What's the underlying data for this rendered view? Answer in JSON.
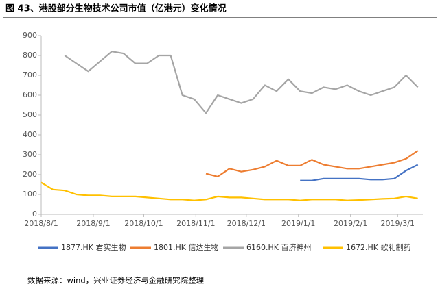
{
  "chart_data": {
    "type": "line",
    "title": "图 43、港股部分生物技术公司市值（亿港元）变化情况",
    "source": "数据来源：wind，兴业证券经济与金融研究院整理",
    "x": [
      "2018/8/1",
      "2018/8/8",
      "2018/8/15",
      "2018/8/22",
      "2018/8/29",
      "2018/9/5",
      "2018/9/12",
      "2018/9/19",
      "2018/9/26",
      "2018/10/3",
      "2018/10/10",
      "2018/10/17",
      "2018/10/24",
      "2018/10/31",
      "2018/11/7",
      "2018/11/14",
      "2018/11/21",
      "2018/11/28",
      "2018/12/5",
      "2018/12/12",
      "2018/12/19",
      "2018/12/26",
      "2019/1/2",
      "2019/1/9",
      "2019/1/16",
      "2019/1/23",
      "2019/1/30",
      "2019/2/6",
      "2019/2/13",
      "2019/2/20",
      "2019/2/27",
      "2019/3/6",
      "2019/3/13"
    ],
    "series": [
      {
        "name": "1877.HK 君实生物",
        "color": "#4472c4",
        "values": [
          null,
          null,
          null,
          null,
          null,
          null,
          null,
          null,
          null,
          null,
          null,
          null,
          null,
          null,
          null,
          null,
          null,
          null,
          null,
          null,
          null,
          null,
          170,
          170,
          180,
          180,
          180,
          180,
          175,
          175,
          180,
          220,
          250
        ]
      },
      {
        "name": "1801.HK 信达生物",
        "color": "#ed7d31",
        "values": [
          null,
          null,
          null,
          null,
          null,
          null,
          null,
          null,
          null,
          null,
          null,
          null,
          null,
          null,
          205,
          190,
          230,
          215,
          225,
          240,
          270,
          245,
          245,
          275,
          250,
          240,
          230,
          230,
          240,
          250,
          260,
          280,
          320
        ]
      },
      {
        "name": "6160.HK 百济神州",
        "color": "#a5a5a5",
        "values": [
          null,
          null,
          800,
          760,
          720,
          770,
          820,
          810,
          760,
          760,
          800,
          800,
          600,
          580,
          510,
          600,
          580,
          560,
          580,
          650,
          620,
          680,
          620,
          610,
          640,
          630,
          650,
          620,
          600,
          620,
          640,
          700,
          640
        ]
      },
      {
        "name": "1672.HK 歌礼制药",
        "color": "#ffc000",
        "values": [
          160,
          125,
          120,
          100,
          95,
          95,
          90,
          90,
          90,
          85,
          80,
          75,
          75,
          70,
          75,
          90,
          85,
          85,
          80,
          75,
          75,
          75,
          70,
          75,
          75,
          75,
          70,
          72,
          75,
          78,
          80,
          90,
          80
        ]
      }
    ],
    "xlim": [
      "2018/8/1",
      "2019/3/16"
    ],
    "xticks": [
      "2018/8/1",
      "2018/9/1",
      "2018/10/1",
      "2018/11/1",
      "2018/12/1",
      "2019/1/1",
      "2019/2/1",
      "2019/3/1"
    ],
    "ylim": [
      0,
      900
    ],
    "yticks": [
      0,
      100,
      200,
      300,
      400,
      500,
      600,
      700,
      800,
      900
    ]
  }
}
